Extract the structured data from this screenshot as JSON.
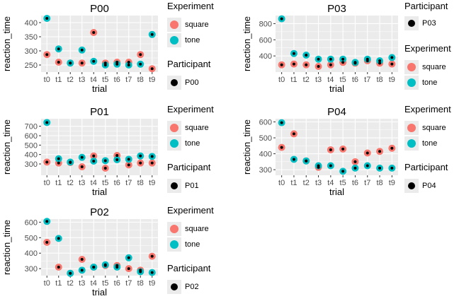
{
  "colors": {
    "square": "#F8766D",
    "tone": "#00BFC4",
    "participant": "#000000",
    "panel_bg": "#EBEBEB",
    "grid": "#FFFFFF"
  },
  "legend": {
    "experiment_title": "Experiment",
    "participant_title": "Participant",
    "levels": [
      "square",
      "tone"
    ]
  },
  "chart_data": [
    {
      "type": "scatter",
      "title": "P00",
      "xlabel": "trial",
      "ylabel": "reaction_time",
      "categories": [
        "t0",
        "t1",
        "t2",
        "t3",
        "t4",
        "t5",
        "t6",
        "t7",
        "t8",
        "t9"
      ],
      "ylim": [
        225,
        425
      ],
      "yticks": [
        250,
        300,
        350,
        400
      ],
      "participant": "P00",
      "series": [
        {
          "name": "square",
          "values": [
            287,
            260,
            257,
            257,
            365,
            257,
            260,
            260,
            287,
            237
          ]
        },
        {
          "name": "tone",
          "values": [
            415,
            307,
            257,
            303,
            263,
            250,
            253,
            250,
            253,
            358
          ]
        }
      ]
    },
    {
      "type": "scatter",
      "title": "P03",
      "xlabel": "trial",
      "ylabel": "reaction_time",
      "categories": [
        "t0",
        "t1",
        "t2",
        "t3",
        "t4",
        "t5",
        "t6",
        "t7",
        "t8",
        "t9"
      ],
      "ylim": [
        200,
        900
      ],
      "yticks": [
        400,
        600,
        800
      ],
      "participant": "P03",
      "series": [
        {
          "name": "square",
          "values": [
            290,
            300,
            290,
            270,
            290,
            320,
            310,
            340,
            310,
            300
          ]
        },
        {
          "name": "tone",
          "values": [
            860,
            430,
            410,
            360,
            360,
            360,
            320,
            360,
            340,
            380
          ]
        }
      ]
    },
    {
      "type": "scatter",
      "title": "P01",
      "xlabel": "trial",
      "ylabel": "reaction_time",
      "categories": [
        "t0",
        "t1",
        "t2",
        "t3",
        "t4",
        "t5",
        "t6",
        "t7",
        "t8",
        "t9"
      ],
      "ylim": [
        180,
        780
      ],
      "yticks": [
        300,
        400,
        500,
        600,
        700
      ],
      "participant": "P01",
      "series": [
        {
          "name": "square",
          "values": [
            320,
            310,
            315,
            270,
            385,
            255,
            390,
            290,
            310,
            310
          ]
        },
        {
          "name": "tone",
          "values": [
            740,
            355,
            320,
            370,
            330,
            335,
            345,
            350,
            385,
            380
          ]
        }
      ]
    },
    {
      "type": "scatter",
      "title": "P04",
      "xlabel": "trial",
      "ylabel": "reaction_time",
      "categories": [
        "t0",
        "t1",
        "t2",
        "t3",
        "t4",
        "t5",
        "t6",
        "t7",
        "t8",
        "t9"
      ],
      "ylim": [
        265,
        620
      ],
      "yticks": [
        300,
        400,
        500,
        600
      ],
      "participant": "P04",
      "series": [
        {
          "name": "square",
          "values": [
            440,
            525,
            355,
            315,
            425,
            430,
            350,
            405,
            415,
            435
          ]
        },
        {
          "name": "tone",
          "values": [
            595,
            365,
            355,
            325,
            325,
            290,
            310,
            325,
            310,
            310
          ]
        }
      ]
    },
    {
      "type": "scatter",
      "title": "P02",
      "xlabel": "trial",
      "ylabel": "reaction_time",
      "categories": [
        "t0",
        "t1",
        "t2",
        "t3",
        "t4",
        "t5",
        "t6",
        "t7",
        "t8",
        "t9"
      ],
      "ylim": [
        255,
        620
      ],
      "yticks": [
        300,
        400,
        500,
        600
      ],
      "participant": "P02",
      "series": [
        {
          "name": "square",
          "values": [
            470,
            310,
            270,
            360,
            310,
            320,
            320,
            300,
            290,
            380
          ]
        },
        {
          "name": "tone",
          "values": [
            605,
            495,
            270,
            290,
            310,
            325,
            310,
            370,
            280,
            275
          ]
        }
      ]
    }
  ]
}
